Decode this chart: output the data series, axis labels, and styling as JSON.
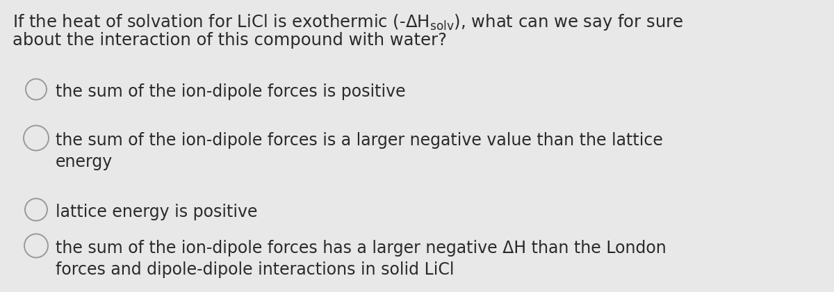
{
  "background_color": "#e8e8e8",
  "text_color": "#2a2a2a",
  "question_line1": "If the heat of solvation for LiCl is exothermic (-ΔH$_{\\mathrm{solv}}$), what can we say for sure",
  "question_line2": "about the interaction of this compound with water?",
  "options": [
    "the sum of the ion-dipole forces is positive",
    "the sum of the ion-dipole forces is a larger negative value than the lattice\nenergy",
    "lattice energy is positive",
    "the sum of the ion-dipole forces has a larger negative ΔH than the London\nforces and dipole-dipole interactions in solid LiCl"
  ],
  "circle_color": "#999999",
  "font_size_question": 17.5,
  "font_size_options": 17.0,
  "fig_width": 12.0,
  "fig_height": 4.2,
  "dpi": 100
}
